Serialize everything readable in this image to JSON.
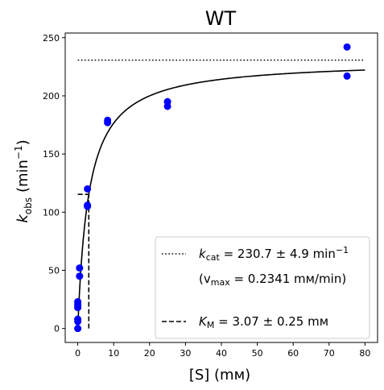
{
  "chart_data": {
    "type": "scatter",
    "title": "WT",
    "xlabel": {
      "main": "[S] (",
      "unit": "mм",
      "close": ")"
    },
    "ylabel": {
      "k": "k",
      "sub": "obs",
      "unit": "(min",
      "sup": "−1",
      "close": ")"
    },
    "xlim": [
      -3.5,
      83.5
    ],
    "ylim": [
      -12,
      254
    ],
    "xticks": [
      0,
      10,
      20,
      30,
      40,
      50,
      60,
      70,
      80
    ],
    "yticks": [
      0,
      50,
      100,
      150,
      200,
      250
    ],
    "series": [
      {
        "kind": "points",
        "color": "#0000ff",
        "x": [
          0,
          0,
          0,
          0,
          0,
          0,
          0,
          0.5,
          0.5,
          2.7,
          2.7,
          2.7,
          8.3,
          8.3,
          25,
          25,
          75,
          75
        ],
        "y": [
          0,
          6,
          8,
          18,
          20,
          21,
          23,
          45,
          52,
          105,
          106,
          120,
          177,
          179,
          191,
          195,
          217,
          242
        ]
      },
      {
        "kind": "fit",
        "color": "#000000",
        "model": "michaelis-menten",
        "kcat": 230.7,
        "KM": 3.07,
        "x_range": [
          0,
          80
        ]
      }
    ],
    "reference_lines": [
      {
        "kind": "kcat",
        "style": "dotted",
        "y": 230.7,
        "x_range": [
          0,
          80
        ]
      },
      {
        "kind": "half-kcat",
        "style": "dashed",
        "y": 115.35,
        "x_range": [
          0,
          3.07
        ]
      },
      {
        "kind": "KM",
        "style": "dashed",
        "x": 3.07,
        "y_range": [
          0,
          115.35
        ]
      }
    ],
    "legend": {
      "position": "lower-right",
      "entries": [
        {
          "style": "dotted",
          "prefix": "k",
          "sub": "cat",
          "text": " = 230.7 ± 4.9 min",
          "sup": "−1"
        },
        {
          "style": "none",
          "text_a": "(v",
          "sub": "max",
          "text_b": " = 0.2341 mм/min)"
        },
        {
          "style": "dashed",
          "prefix": "K",
          "sub": "M",
          "text": " = 3.07 ± 0.25 mм"
        }
      ]
    }
  }
}
